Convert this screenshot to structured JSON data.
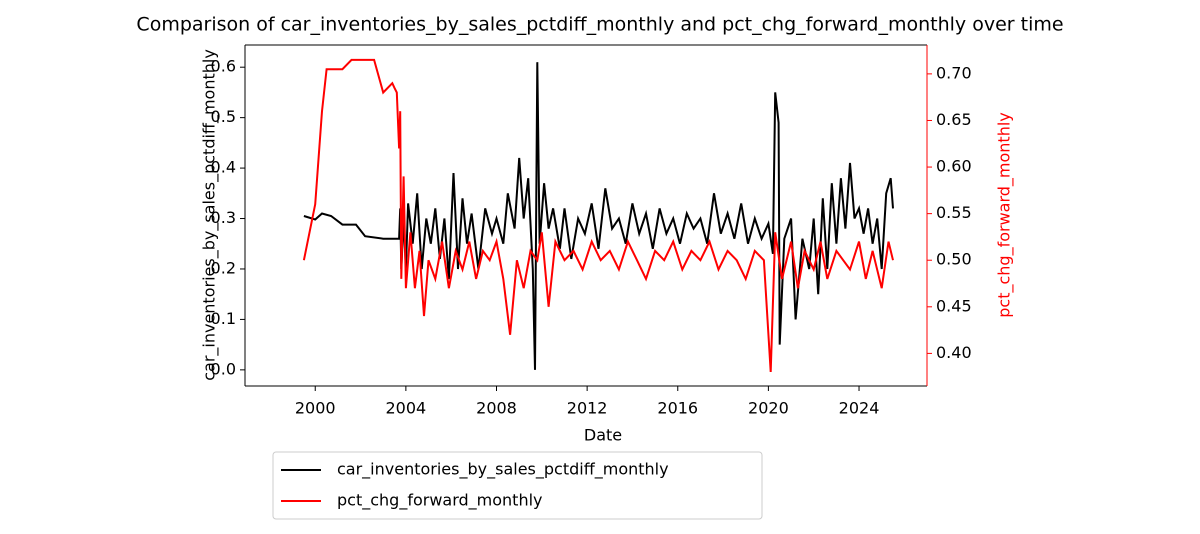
{
  "chart_data": {
    "type": "line",
    "title": "Comparison of car_inventories_by_sales_pctdiff_monthly and pct_chg_forward_monthly over time",
    "x_label": "Date",
    "y_label": "car_inventories_by_sales_pctdiff_monthly",
    "y2_label": "pct_chg_forward_monthly",
    "xlim": [
      1996.9,
      2027.0
    ],
    "xticks": [
      2000,
      2004,
      2008,
      2012,
      2016,
      2020,
      2024
    ],
    "ylim": [
      -0.032,
      0.644
    ],
    "yticks": [
      {
        "value": 0,
        "label": "0.0"
      },
      0.1,
      0.2,
      0.3,
      0.4,
      0.5,
      0.6
    ],
    "y2lim": [
      0.365,
      0.731
    ],
    "y2ticks": [
      {
        "value": 0.4,
        "label": "0.40"
      },
      0.45,
      {
        "value": 0.5,
        "label": "0.50"
      },
      0.55,
      {
        "value": 0.6,
        "label": "0.60"
      },
      0.65,
      {
        "value": 0.7,
        "label": "0.70"
      }
    ],
    "y2_color": "#ff0000",
    "legend": "below",
    "series": [
      {
        "name": "car_inventories_by_sales_pctdiff_monthly",
        "color": "#000000",
        "x": [
          1999.5,
          2000,
          2000.3,
          2000.7,
          2001.2,
          2001.8,
          2002.2,
          2003,
          2003.5,
          2003.7,
          2003.75,
          2003.8,
          2003.9,
          2004.0,
          2004.1,
          2004.3,
          2004.5,
          2004.7,
          2004.9,
          2005.1,
          2005.3,
          2005.5,
          2005.7,
          2005.9,
          2006.1,
          2006.3,
          2006.5,
          2006.7,
          2006.9,
          2007.2,
          2007.5,
          2007.8,
          2008.0,
          2008.3,
          2008.5,
          2008.8,
          2009.0,
          2009.2,
          2009.4,
          2009.6,
          2009.7,
          2009.8,
          2009.9,
          2010.1,
          2010.3,
          2010.5,
          2010.8,
          2011.0,
          2011.3,
          2011.6,
          2011.9,
          2012.2,
          2012.5,
          2012.8,
          2013.1,
          2013.4,
          2013.7,
          2014.0,
          2014.3,
          2014.6,
          2014.9,
          2015.2,
          2015.5,
          2015.8,
          2016.1,
          2016.4,
          2016.7,
          2017.0,
          2017.3,
          2017.6,
          2017.9,
          2018.2,
          2018.5,
          2018.8,
          2019.1,
          2019.4,
          2019.7,
          2020.0,
          2020.2,
          2020.3,
          2020.45,
          2020.5,
          2020.7,
          2021.0,
          2021.2,
          2021.5,
          2021.8,
          2022.0,
          2022.2,
          2022.4,
          2022.6,
          2022.8,
          2023.0,
          2023.2,
          2023.4,
          2023.6,
          2023.8,
          2024.0,
          2024.2,
          2024.4,
          2024.6,
          2024.8,
          2025.0,
          2025.2,
          2025.4,
          2025.5
        ],
        "values": [
          0.305,
          0.298,
          0.31,
          0.305,
          0.288,
          0.288,
          0.265,
          0.26,
          0.26,
          0.26,
          0.32,
          0.2,
          0.3,
          0.2,
          0.33,
          0.25,
          0.35,
          0.2,
          0.3,
          0.25,
          0.32,
          0.22,
          0.3,
          0.18,
          0.39,
          0.2,
          0.34,
          0.25,
          0.31,
          0.2,
          0.32,
          0.27,
          0.3,
          0.25,
          0.35,
          0.28,
          0.42,
          0.3,
          0.38,
          0.2,
          0.0,
          0.61,
          0.25,
          0.37,
          0.28,
          0.32,
          0.24,
          0.32,
          0.22,
          0.3,
          0.27,
          0.33,
          0.24,
          0.36,
          0.28,
          0.3,
          0.25,
          0.33,
          0.27,
          0.31,
          0.24,
          0.32,
          0.27,
          0.3,
          0.25,
          0.31,
          0.28,
          0.3,
          0.25,
          0.35,
          0.27,
          0.31,
          0.26,
          0.33,
          0.25,
          0.3,
          0.26,
          0.29,
          0.23,
          0.55,
          0.49,
          0.05,
          0.26,
          0.3,
          0.1,
          0.26,
          0.2,
          0.3,
          0.15,
          0.34,
          0.2,
          0.37,
          0.25,
          0.38,
          0.28,
          0.41,
          0.3,
          0.32,
          0.27,
          0.32,
          0.25,
          0.3,
          0.2,
          0.35,
          0.38,
          0.32
        ]
      },
      {
        "name": "pct_chg_forward_monthly",
        "color": "#ff0000",
        "axis": "y2",
        "x": [
          1999.5,
          2000,
          2000.3,
          2000.5,
          2001.2,
          2001.6,
          2002.6,
          2003,
          2003.4,
          2003.5,
          2003.6,
          2003.7,
          2003.75,
          2003.8,
          2003.9,
          2004.0,
          2004.2,
          2004.4,
          2004.6,
          2004.8,
          2005.0,
          2005.3,
          2005.6,
          2005.9,
          2006.2,
          2006.5,
          2006.8,
          2007.1,
          2007.4,
          2007.7,
          2008.0,
          2008.3,
          2008.6,
          2008.9,
          2009.2,
          2009.5,
          2009.8,
          2010.0,
          2010.3,
          2010.6,
          2011.0,
          2011.4,
          2011.8,
          2012.2,
          2012.6,
          2013.0,
          2013.4,
          2013.8,
          2014.2,
          2014.6,
          2015.0,
          2015.4,
          2015.8,
          2016.2,
          2016.6,
          2017.0,
          2017.4,
          2017.8,
          2018.2,
          2018.6,
          2019.0,
          2019.4,
          2019.8,
          2020.1,
          2020.3,
          2020.6,
          2021.0,
          2021.3,
          2021.6,
          2022.0,
          2022.3,
          2022.6,
          2023.0,
          2023.3,
          2023.6,
          2024.0,
          2024.3,
          2024.6,
          2025.0,
          2025.3,
          2025.5
        ],
        "values": [
          0.5,
          0.56,
          0.66,
          0.705,
          0.705,
          0.715,
          0.715,
          0.68,
          0.69,
          0.685,
          0.68,
          0.62,
          0.66,
          0.48,
          0.59,
          0.47,
          0.53,
          0.47,
          0.51,
          0.44,
          0.5,
          0.48,
          0.52,
          0.47,
          0.51,
          0.49,
          0.52,
          0.48,
          0.51,
          0.5,
          0.52,
          0.48,
          0.42,
          0.5,
          0.47,
          0.51,
          0.5,
          0.53,
          0.45,
          0.52,
          0.5,
          0.51,
          0.49,
          0.52,
          0.5,
          0.51,
          0.49,
          0.52,
          0.5,
          0.48,
          0.51,
          0.5,
          0.52,
          0.49,
          0.51,
          0.5,
          0.52,
          0.49,
          0.51,
          0.5,
          0.48,
          0.51,
          0.5,
          0.38,
          0.53,
          0.48,
          0.52,
          0.47,
          0.51,
          0.49,
          0.52,
          0.48,
          0.51,
          0.5,
          0.49,
          0.52,
          0.48,
          0.51,
          0.47,
          0.52,
          0.5
        ]
      }
    ]
  }
}
